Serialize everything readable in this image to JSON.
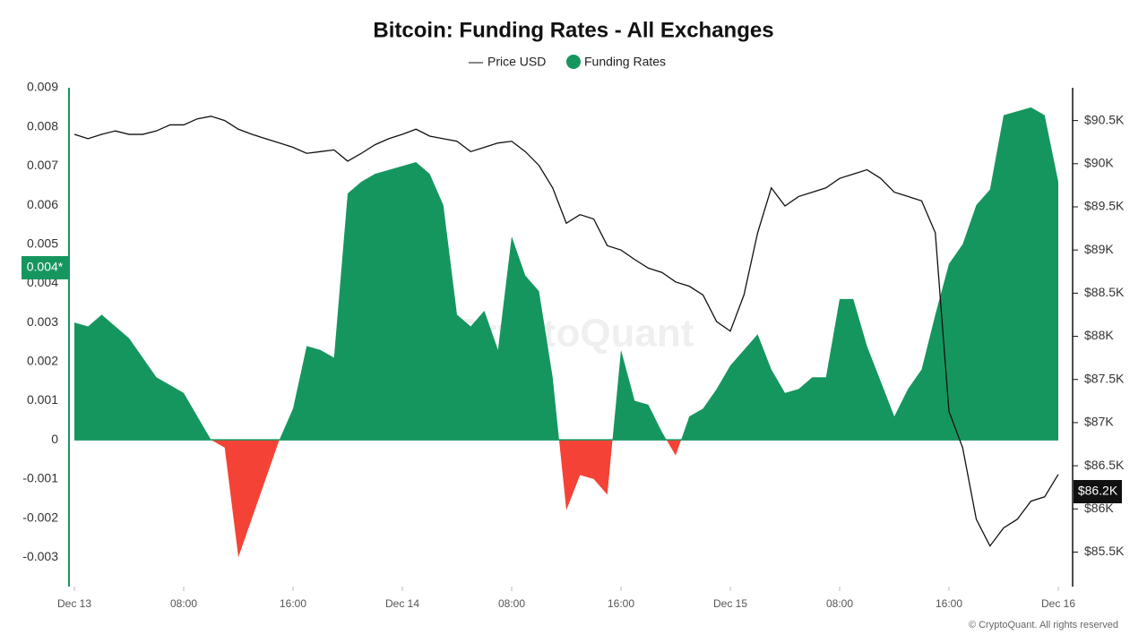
{
  "chart_data": {
    "type": "area_line",
    "title": "Bitcoin: Funding Rates - All Exchanges",
    "watermark": "CryptoQuant",
    "footer": "© CryptoQuant. All rights reserved",
    "categories": [
      "Dec 13",
      null,
      null,
      null,
      null,
      null,
      null,
      null,
      "08:00",
      null,
      null,
      null,
      null,
      null,
      null,
      null,
      "16:00",
      null,
      null,
      null,
      null,
      null,
      null,
      null,
      "Dec 14",
      null,
      null,
      null,
      null,
      null,
      null,
      null,
      "08:00",
      null,
      null,
      null,
      null,
      null,
      null,
      null,
      "16:00",
      null,
      null,
      null,
      null,
      null,
      null,
      null,
      "Dec 15",
      null,
      null,
      null,
      null,
      null,
      null,
      null,
      "08:00",
      null,
      null,
      null,
      null,
      null,
      null,
      null,
      "16:00",
      null,
      null,
      null,
      null,
      null,
      null,
      null,
      "Dec 16"
    ],
    "series": [
      {
        "name": "Price USD",
        "color": "#111111",
        "axis": "y2",
        "values": [
          90340,
          90290,
          90340,
          90380,
          90340,
          90340,
          90380,
          90450,
          90450,
          90520,
          90550,
          90500,
          90400,
          90340,
          90290,
          90240,
          90190,
          90120,
          90140,
          90160,
          90030,
          90120,
          90220,
          90290,
          90340,
          90400,
          90320,
          90290,
          90260,
          90140,
          90190,
          90240,
          90260,
          90140,
          89980,
          89720,
          89310,
          89410,
          89360,
          89050,
          89000,
          88890,
          88790,
          88740,
          88630,
          88580,
          88480,
          88170,
          88060,
          88480,
          89200,
          89720,
          89510,
          89620,
          89670,
          89720,
          89830,
          89880,
          89930,
          89830,
          89670,
          89620,
          89570,
          89200,
          87130,
          86710,
          85880,
          85570,
          85780,
          85880,
          86090,
          86140,
          86400
        ]
      },
      {
        "name": "Funding Rates",
        "color": "#16965f",
        "negative_color": "#f44336",
        "values": [
          0.003,
          0.0029,
          0.0032,
          0.0029,
          0.0026,
          0.0021,
          0.0016,
          0.0014,
          0.0012,
          0.0006,
          0.0,
          -0.0002,
          -0.003,
          -0.002,
          -0.001,
          0.0,
          0.0008,
          0.0024,
          0.0023,
          0.0021,
          0.0063,
          0.0066,
          0.0068,
          0.0069,
          0.007,
          0.0071,
          0.0068,
          0.006,
          0.0032,
          0.0029,
          0.0033,
          0.0023,
          0.0052,
          0.0042,
          0.0038,
          0.0016,
          -0.0018,
          -0.0009,
          -0.001,
          -0.0014,
          0.0023,
          0.001,
          0.0009,
          0.0002,
          -0.0004,
          0.0006,
          0.0008,
          0.0013,
          0.0019,
          0.0023,
          0.0027,
          0.0018,
          0.0012,
          0.0013,
          0.0016,
          0.0016,
          0.0036,
          0.0036,
          0.0024,
          0.0015,
          0.0006,
          0.0013,
          0.0018,
          0.0032,
          0.0045,
          0.005,
          0.006,
          0.0064,
          0.0083,
          0.0084,
          0.0085,
          0.0083,
          0.0066
        ]
      }
    ],
    "ylim": [
      -0.00375,
      0.009
    ],
    "yticks": [
      -0.003,
      -0.002,
      -0.001,
      0,
      0.001,
      0.002,
      0.003,
      0.004,
      0.005,
      0.006,
      0.007,
      0.008,
      0.009
    ],
    "y2lim": [
      85100,
      90880
    ],
    "y2ticks": [
      {
        "value": 85500,
        "label": "$85.5K"
      },
      {
        "value": 86000,
        "label": "$86K"
      },
      {
        "value": 86500,
        "label": "$86.5K"
      },
      {
        "value": 87000,
        "label": "$87K"
      },
      {
        "value": 87500,
        "label": "$87.5K"
      },
      {
        "value": 88000,
        "label": "$88K"
      },
      {
        "value": 88500,
        "label": "$88.5K"
      },
      {
        "value": 89000,
        "label": "$89K"
      },
      {
        "value": 89500,
        "label": "$89.5K"
      },
      {
        "value": 90000,
        "label": "$90K"
      },
      {
        "value": 90500,
        "label": "$90.5K"
      }
    ],
    "current_funding": {
      "value": 0.0044,
      "label": "0.004*"
    },
    "current_price": {
      "value": 86200,
      "label": "$86.2K"
    },
    "legend": "top"
  }
}
